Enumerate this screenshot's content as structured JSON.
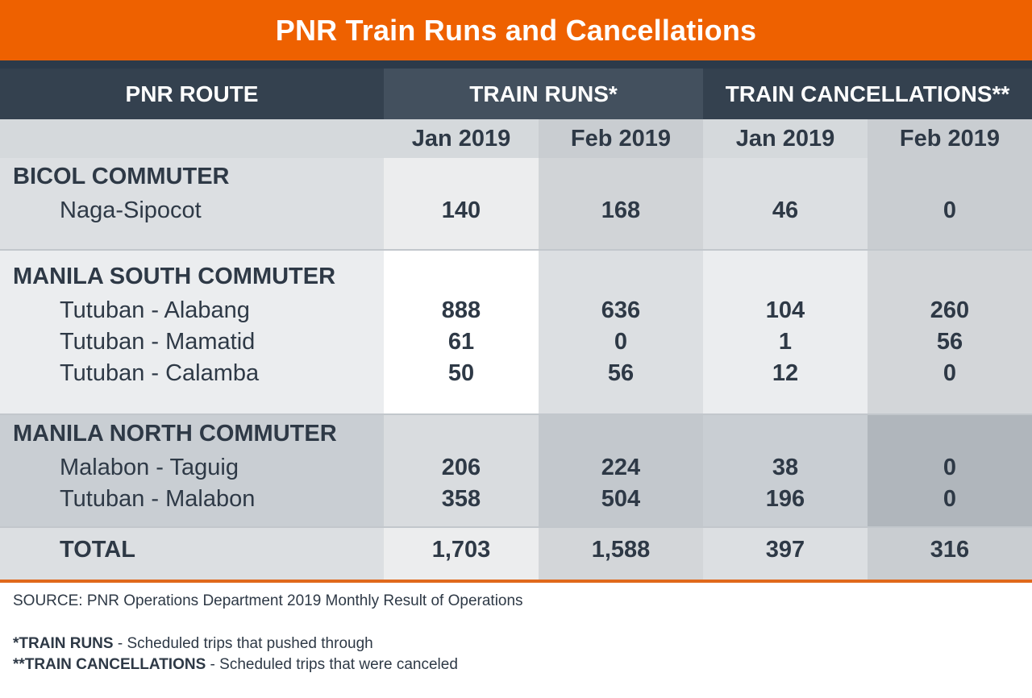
{
  "title": "PNR Train Runs and Cancellations",
  "chart_data": {
    "type": "table",
    "title": "PNR Train Runs and Cancellations",
    "headers": {
      "route": "PNR ROUTE",
      "runs": "TRAIN RUNS*",
      "cancellations": "TRAIN CANCELLATIONS**"
    },
    "months": [
      "Jan 2019",
      "Feb 2019",
      "Jan 2019",
      "Feb 2019"
    ],
    "sections": [
      {
        "name": "BICOL COMMUTER",
        "rows": [
          {
            "route": "Naga-Sipocot",
            "values": [
              "140",
              "168",
              "46",
              "0"
            ]
          }
        ]
      },
      {
        "name": "MANILA SOUTH COMMUTER",
        "rows": [
          {
            "route": "Tutuban - Alabang",
            "values": [
              "888",
              "636",
              "104",
              "260"
            ]
          },
          {
            "route": "Tutuban - Mamatid",
            "values": [
              "61",
              "0",
              "1",
              "56"
            ]
          },
          {
            "route": "Tutuban - Calamba",
            "values": [
              "50",
              "56",
              "12",
              "0"
            ]
          }
        ]
      },
      {
        "name": "MANILA NORTH COMMUTER",
        "rows": [
          {
            "route": "Malabon - Taguig",
            "values": [
              "206",
              "224",
              "38",
              "0"
            ]
          },
          {
            "route": "Tutuban - Malabon",
            "values": [
              "358",
              "504",
              "196",
              "0"
            ]
          }
        ]
      }
    ],
    "total": {
      "label": "TOTAL",
      "values": [
        "1,703",
        "1,588",
        "397",
        "316"
      ]
    }
  },
  "footer": {
    "source": "SOURCE: PNR Operations Department 2019 Monthly Result of Operations",
    "note1_term": "*TRAIN RUNS",
    "note1_text": " - Scheduled trips that pushed through",
    "note2_term": "**TRAIN CANCELLATIONS",
    "note2_text": " - Scheduled trips that were canceled"
  },
  "colors": {
    "accent": "#ee6100",
    "header_dark": "#34414f",
    "text": "#2e3946"
  }
}
